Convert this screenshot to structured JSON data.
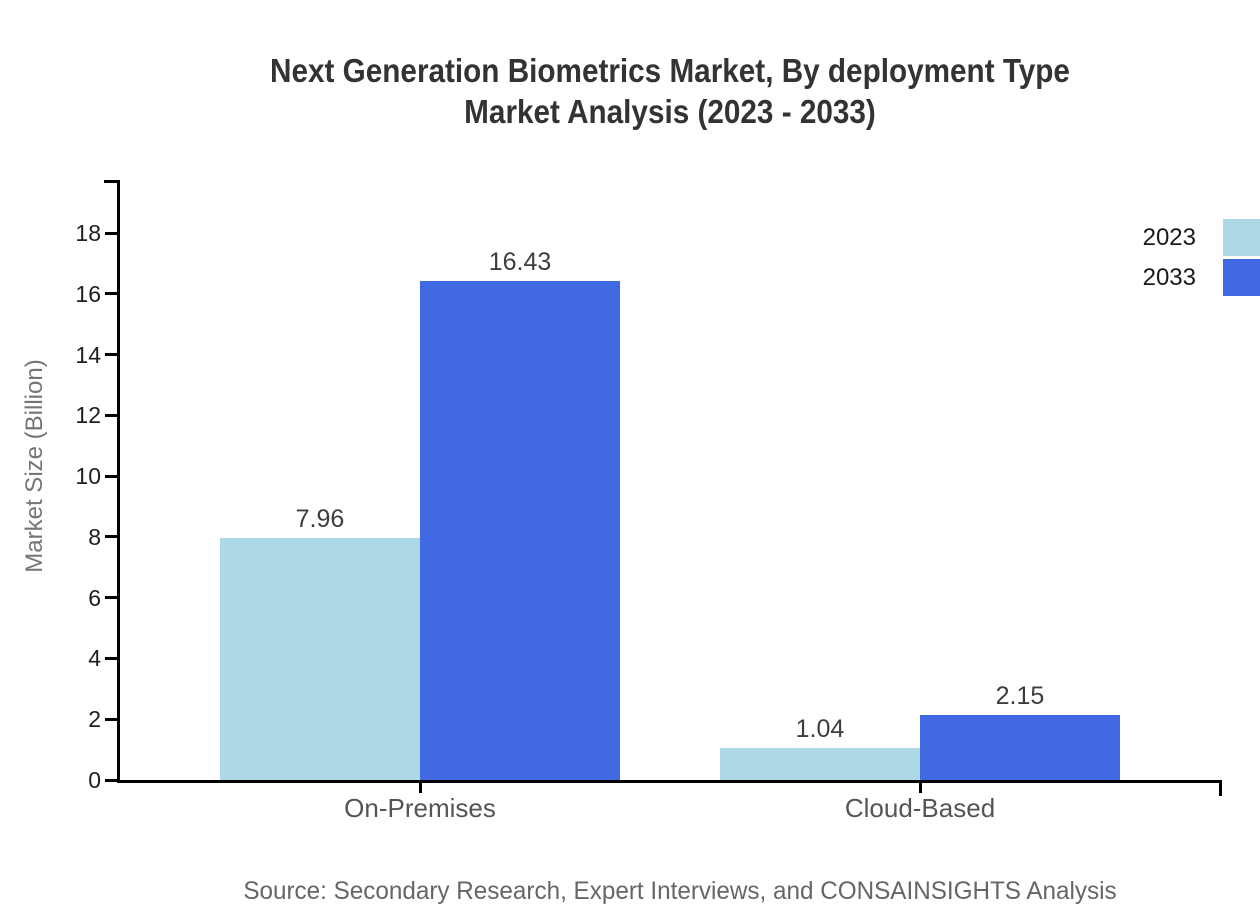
{
  "source_note": "Source: Secondary Research, Expert Interviews, and CONSAINSIGHTS Analysis",
  "chart_data": {
    "type": "bar",
    "title": "Next Generation Biometrics Market, By deployment Type Market Analysis (2023 - 2033)",
    "title_lines": [
      "Next Generation Biometrics Market, By deployment Type",
      "Market Analysis (2023 - 2033)"
    ],
    "categories": [
      "On-Premises",
      "Cloud-Based"
    ],
    "series": [
      {
        "name": "2023",
        "color": "#ADD8E6",
        "values": [
          7.96,
          1.04
        ]
      },
      {
        "name": "2033",
        "color": "#4169E1",
        "values": [
          16.43,
          2.15
        ]
      }
    ],
    "value_labels": [
      [
        "7.96",
        "1.04"
      ],
      [
        "16.43",
        "2.15"
      ]
    ],
    "ylabel": "Market Size (Billion)",
    "xlabel": "",
    "yticks": [
      0,
      2,
      4,
      6,
      8,
      10,
      12,
      14,
      16,
      18
    ],
    "ylim": [
      0,
      19.7
    ],
    "grid": false,
    "legend_position": "top-right",
    "axis_color": "#000000",
    "text_colors": {
      "title": "#333333",
      "tick_labels": "#1f1f1f",
      "value_labels": "#3d3d3d",
      "category_labels": "#555555",
      "ylabel": "#757575",
      "source": "#666666"
    }
  }
}
